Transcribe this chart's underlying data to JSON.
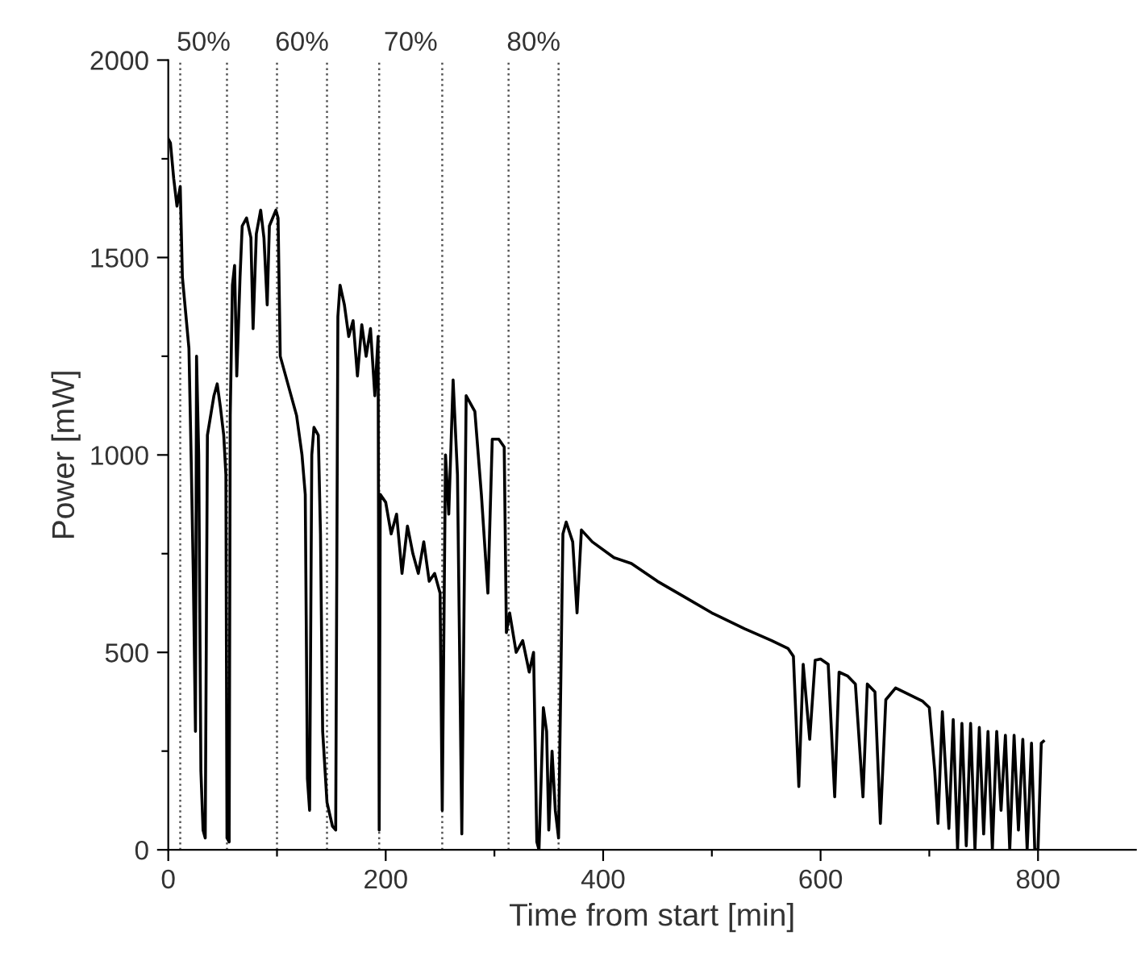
{
  "chart_data": {
    "type": "line",
    "xlabel": "Time from start [min]",
    "ylabel": "Power [mW]",
    "xlim": [
      0,
      890
    ],
    "ylim": [
      0,
      2000
    ],
    "xticks": [
      0,
      {
        "value": 100,
        "label": null
      },
      200,
      {
        "value": 300,
        "label": null
      },
      400,
      {
        "value": 500,
        "label": null
      },
      600,
      {
        "value": 700,
        "label": null
      },
      800
    ],
    "yticks": [
      0,
      {
        "value": 250,
        "label": null
      },
      500,
      {
        "value": 750,
        "label": null
      },
      1000,
      {
        "value": 1250,
        "label": null
      },
      1500,
      {
        "value": 1750,
        "label": null
      },
      2000
    ],
    "grid": false,
    "legend": false,
    "marker": "none",
    "line_style": "solid",
    "annotations": [
      "50%",
      "60%",
      "70%",
      "80%"
    ],
    "ref_lines": [
      {
        "axis": "x",
        "value": 11,
        "label": null,
        "color": "#555555",
        "line_style": "dotted"
      },
      {
        "axis": "x",
        "value": 54,
        "label": null,
        "color": "#555555",
        "line_style": "dotted"
      },
      {
        "axis": "x",
        "value": 100,
        "label": null,
        "color": "#555555",
        "line_style": "dotted"
      },
      {
        "axis": "x",
        "value": 146,
        "label": null,
        "color": "#555555",
        "line_style": "dotted"
      },
      {
        "axis": "x",
        "value": 194,
        "label": null,
        "color": "#555555",
        "line_style": "dotted"
      },
      {
        "axis": "x",
        "value": 252,
        "label": null,
        "color": "#555555",
        "line_style": "dotted"
      },
      {
        "axis": "x",
        "value": 313,
        "label": null,
        "color": "#555555",
        "line_style": "dotted"
      },
      {
        "axis": "x",
        "value": 359,
        "label": null,
        "color": "#555555",
        "line_style": "dotted"
      }
    ],
    "series": [
      {
        "color": "#000000",
        "x": [
          0,
          2,
          5,
          8,
          11,
          13,
          16,
          19,
          21,
          23,
          25,
          26,
          28,
          30,
          32,
          34,
          36,
          39,
          42,
          45,
          48,
          51,
          53,
          54,
          56,
          57,
          59,
          61,
          63,
          66,
          68,
          72,
          76,
          78,
          81,
          85,
          88,
          91,
          93,
          96,
          99,
          101,
          103,
          108,
          113,
          118,
          123,
          126,
          128,
          130,
          132,
          134,
          138,
          140,
          142,
          146,
          151,
          154,
          156,
          158,
          162,
          166,
          170,
          174,
          178,
          182,
          186,
          190,
          193,
          194,
          195,
          200,
          205,
          210,
          215,
          220,
          225,
          230,
          235,
          240,
          245,
          250,
          252,
          255,
          258,
          262,
          266,
          270,
          274,
          278,
          282,
          288,
          294,
          298,
          304,
          309,
          311,
          314,
          320,
          326,
          332,
          336,
          339,
          341,
          345,
          348,
          350,
          353,
          356,
          359,
          363,
          366,
          372,
          376,
          380,
          390,
          410,
          426,
          450,
          475,
          500,
          530,
          555,
          570,
          575,
          580,
          584,
          590,
          595,
          600,
          607,
          613,
          617,
          625,
          632,
          639,
          643,
          650,
          655,
          660,
          669,
          680,
          694,
          700,
          705,
          708,
          712,
          718,
          722,
          726,
          730,
          734,
          738,
          742,
          746,
          750,
          754,
          758,
          762,
          766,
          770,
          774,
          778,
          782,
          786,
          790,
          794,
          797,
          800,
          803,
          805
        ],
        "values": [
          1800,
          1790,
          1700,
          1630,
          1680,
          1450,
          1360,
          1270,
          1000,
          700,
          300,
          1250,
          1000,
          200,
          50,
          30,
          1050,
          1100,
          1150,
          1180,
          1120,
          1050,
          950,
          30,
          20,
          1100,
          1430,
          1480,
          1200,
          1450,
          1580,
          1600,
          1550,
          1320,
          1560,
          1620,
          1550,
          1380,
          1580,
          1600,
          1620,
          1600,
          1250,
          1200,
          1150,
          1100,
          1000,
          900,
          180,
          100,
          1000,
          1070,
          1050,
          800,
          300,
          120,
          60,
          50,
          1350,
          1430,
          1380,
          1300,
          1340,
          1200,
          1330,
          1250,
          1320,
          1150,
          1300,
          50,
          900,
          880,
          800,
          850,
          700,
          820,
          750,
          700,
          780,
          680,
          700,
          650,
          100,
          1000,
          850,
          1190,
          950,
          40,
          1150,
          1130,
          1110,
          900,
          650,
          1040,
          1040,
          1020,
          550,
          600,
          500,
          530,
          450,
          500,
          20,
          0,
          360,
          300,
          50,
          250,
          100,
          30,
          800,
          830,
          780,
          600,
          810,
          780,
          740,
          725,
          680,
          640,
          600,
          560,
          530,
          510,
          490,
          160,
          470,
          280,
          480,
          483,
          470,
          134,
          450,
          440,
          420,
          134,
          420,
          400,
          67,
          380,
          410,
          395,
          376,
          360,
          200,
          67,
          350,
          54,
          330,
          0,
          320,
          10,
          320,
          0,
          310,
          40,
          300,
          0,
          300,
          100,
          290,
          0,
          290,
          50,
          280,
          0,
          270,
          0,
          0,
          270,
          275
        ]
      }
    ]
  }
}
